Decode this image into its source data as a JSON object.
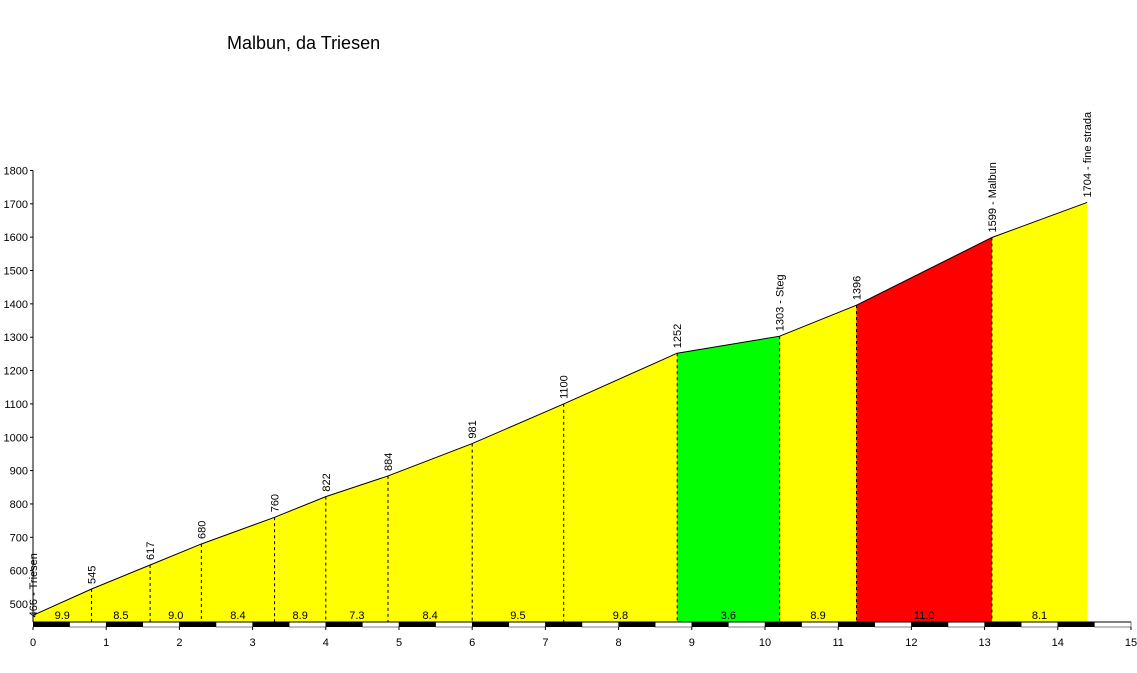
{
  "chart_data": {
    "type": "area",
    "title": "Malbun, da Triesen",
    "xlabel": "",
    "ylabel": "",
    "xlim": [
      0,
      15
    ],
    "ylim": [
      440,
      1800
    ],
    "x_ticks": [
      0,
      1,
      2,
      3,
      4,
      5,
      6,
      7,
      8,
      9,
      10,
      11,
      12,
      13,
      14,
      15
    ],
    "y_ticks": [
      500,
      600,
      700,
      800,
      900,
      1000,
      1100,
      1200,
      1300,
      1400,
      1500,
      1600,
      1700,
      1800
    ],
    "points": [
      {
        "x": 0.0,
        "y": 466,
        "label": "466 - Triesen"
      },
      {
        "x": 0.8,
        "y": 545,
        "label": "545"
      },
      {
        "x": 1.6,
        "y": 617,
        "label": "617"
      },
      {
        "x": 2.3,
        "y": 680,
        "label": "680"
      },
      {
        "x": 3.3,
        "y": 760,
        "label": "760"
      },
      {
        "x": 4.0,
        "y": 822,
        "label": "822"
      },
      {
        "x": 4.85,
        "y": 884,
        "label": "884"
      },
      {
        "x": 6.0,
        "y": 981,
        "label": "981"
      },
      {
        "x": 7.25,
        "y": 1100,
        "label": "1100"
      },
      {
        "x": 8.8,
        "y": 1252,
        "label": "1252"
      },
      {
        "x": 10.2,
        "y": 1303,
        "label": "1303 - Steg"
      },
      {
        "x": 11.25,
        "y": 1396,
        "label": "1396"
      },
      {
        "x": 13.1,
        "y": 1599,
        "label": "1599 - Malbun"
      },
      {
        "x": 14.4,
        "y": 1704,
        "label": "1704 - fine strada"
      }
    ],
    "segments": [
      {
        "grade": "9.9",
        "color": "#ffff00"
      },
      {
        "grade": "8.5",
        "color": "#ffff00"
      },
      {
        "grade": "9.0",
        "color": "#ffff00"
      },
      {
        "grade": "8.4",
        "color": "#ffff00"
      },
      {
        "grade": "8.9",
        "color": "#ffff00"
      },
      {
        "grade": "7.3",
        "color": "#ffff00"
      },
      {
        "grade": "8.4",
        "color": "#ffff00"
      },
      {
        "grade": "9.5",
        "color": "#ffff00"
      },
      {
        "grade": "9.8",
        "color": "#ffff00"
      },
      {
        "grade": "3.6",
        "color": "#00ff00"
      },
      {
        "grade": "8.9",
        "color": "#ffff00"
      },
      {
        "grade": "11.0",
        "color": "#ff0000"
      },
      {
        "grade": "8.1",
        "color": "#ffff00"
      }
    ]
  }
}
